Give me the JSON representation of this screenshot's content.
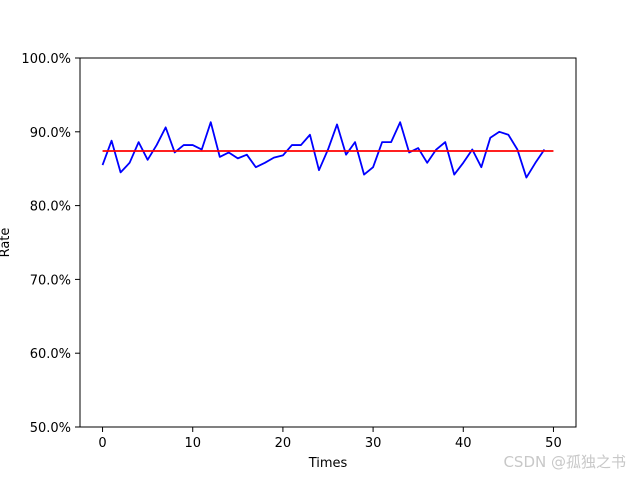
{
  "chart_data": {
    "type": "line",
    "xlabel": "Times",
    "ylabel": "Rate",
    "xlim": [
      -2.5,
      52.5
    ],
    "ylim": [
      0.5,
      1.0
    ],
    "x_ticks": [
      0,
      10,
      20,
      30,
      40,
      50
    ],
    "x_tick_labels": [
      "0",
      "10",
      "20",
      "30",
      "40",
      "50"
    ],
    "y_ticks": [
      0.5,
      0.6,
      0.7,
      0.8,
      0.9,
      1.0
    ],
    "y_tick_labels": [
      "50.0%",
      "60.0%",
      "70.0%",
      "80.0%",
      "90.0%",
      "100.0%"
    ],
    "grid": false,
    "series": [
      {
        "color": "#0000ff",
        "x": [
          0,
          1,
          2,
          3,
          4,
          5,
          6,
          7,
          8,
          9,
          10,
          11,
          12,
          13,
          14,
          15,
          16,
          17,
          18,
          19,
          20,
          21,
          22,
          23,
          24,
          25,
          26,
          27,
          28,
          29,
          30,
          31,
          32,
          33,
          34,
          35,
          36,
          37,
          38,
          39,
          40,
          41,
          42,
          43,
          44,
          45,
          46,
          47,
          48,
          49
        ],
        "y": [
          0.855,
          0.888,
          0.845,
          0.858,
          0.886,
          0.862,
          0.882,
          0.906,
          0.872,
          0.882,
          0.882,
          0.876,
          0.913,
          0.866,
          0.872,
          0.864,
          0.869,
          0.852,
          0.858,
          0.865,
          0.868,
          0.882,
          0.882,
          0.896,
          0.848,
          0.876,
          0.91,
          0.869,
          0.886,
          0.842,
          0.852,
          0.886,
          0.886,
          0.913,
          0.872,
          0.878,
          0.858,
          0.876,
          0.886,
          0.842,
          0.858,
          0.876,
          0.852,
          0.892,
          0.9,
          0.896,
          0.876,
          0.838,
          0.858,
          0.876
        ]
      },
      {
        "color": "#ff0000",
        "x": [
          0,
          50
        ],
        "y": [
          0.874,
          0.874
        ]
      }
    ]
  },
  "watermark": "CSDN @孤独之书"
}
